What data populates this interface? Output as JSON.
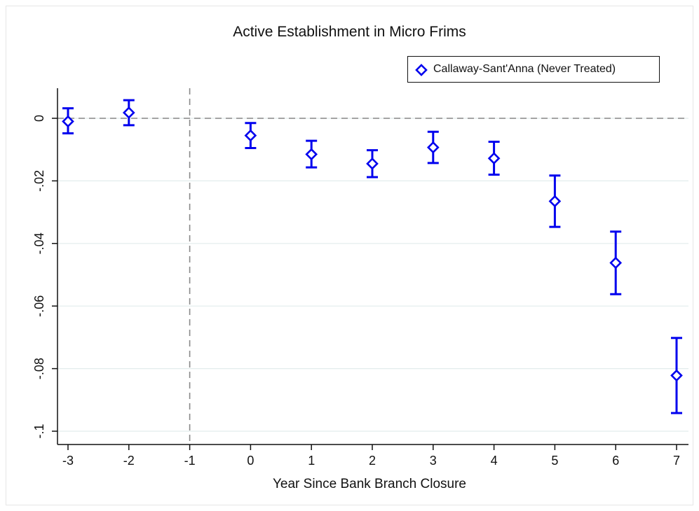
{
  "chart_data": {
    "type": "scatter",
    "title": "Active Establishment in Micro Frims",
    "xlabel": "Year Since Bank Branch Closure",
    "ylabel": "",
    "xlim": [
      -3,
      7
    ],
    "ylim": [
      -0.1,
      0
    ],
    "x_ticks": [
      -3,
      -2,
      -1,
      0,
      1,
      2,
      3,
      4,
      5,
      6,
      7
    ],
    "x_tick_labels": [
      "-3",
      "-2",
      "-1",
      "0",
      "1",
      "2",
      "3",
      "4",
      "5",
      "6",
      "7"
    ],
    "y_ticks": [
      0,
      -0.02,
      -0.04,
      -0.06,
      -0.08,
      -0.1
    ],
    "y_tick_labels": [
      "0",
      "-.02",
      "-.04",
      "-.06",
      "-.08",
      "-.1"
    ],
    "grid": "horizontal",
    "reference_lines": {
      "y": 0,
      "x": -1,
      "style": "dashed"
    },
    "legend_position": "top-right",
    "series": [
      {
        "name": "Callaway-Sant'Anna (Never Treated)",
        "color": "#0000ee",
        "marker": "diamond-open",
        "x": [
          -3,
          -2,
          0,
          1,
          2,
          3,
          4,
          5,
          6,
          7
        ],
        "y": [
          -0.001,
          0.0018,
          -0.0055,
          -0.0115,
          -0.0145,
          -0.0093,
          -0.0128,
          -0.0265,
          -0.0462,
          -0.0822
        ],
        "ci_low": [
          -0.0048,
          -0.0022,
          -0.0095,
          -0.0157,
          -0.0188,
          -0.0143,
          -0.018,
          -0.0347,
          -0.0562,
          -0.0942
        ],
        "ci_high": [
          0.0032,
          0.0058,
          -0.0015,
          -0.0072,
          -0.0102,
          -0.0043,
          -0.0075,
          -0.0183,
          -0.0362,
          -0.0702
        ]
      }
    ]
  }
}
